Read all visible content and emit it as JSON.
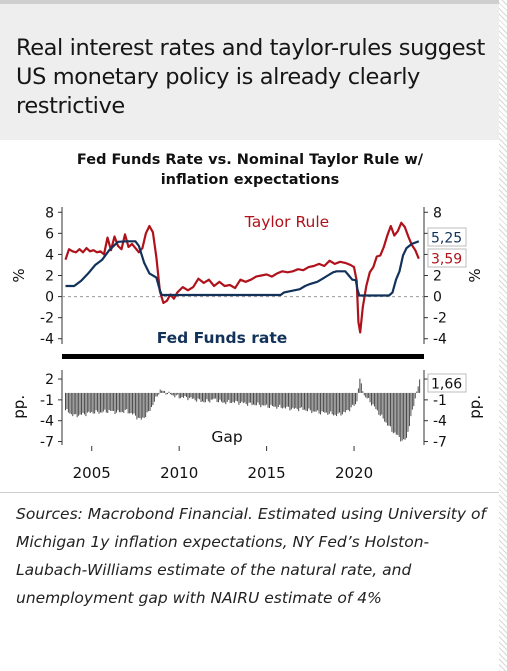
{
  "headline": "Real interest rates and taylor-rules suggest US monetary policy is already clearly restrictive",
  "source": "Sources: Macrobond Financial. Estimated using University of Michigan 1y inflation expectations, NY Fed’s Holston-Laubach-Williams estimate of the natural rate, and unemployment gap with NAIRU estimate of 4%",
  "colors": {
    "taylor_rule": "#b0121b",
    "fed_funds": "#12325a",
    "gap_bars": "#4a4a4a",
    "zero_line": "#9a9a9a"
  },
  "chart_data": [
    {
      "type": "line",
      "title": "Fed Funds Rate vs. Nominal Taylor Rule w/ inflation expectations",
      "ylabel_left": "%",
      "ylabel_right": "%",
      "ylim": [
        -4.5,
        8.5
      ],
      "yticks": [
        8,
        6,
        4,
        2,
        0,
        -2,
        -4
      ],
      "ytick_labels": [
        "8",
        "6",
        "4",
        "2",
        "0",
        "-2",
        "-4"
      ],
      "xlim": [
        2003.3,
        2024.0
      ],
      "xticks": [
        2005,
        2010,
        2015,
        2020
      ],
      "xtick_labels": [
        "2005",
        "2010",
        "2015",
        "2020"
      ],
      "grid": false,
      "series": [
        {
          "name": "Taylor Rule",
          "color": "#b0121b",
          "last_value_label": "3,59",
          "x": [
            2003.5,
            2003.7,
            2003.9,
            2004.1,
            2004.3,
            2004.5,
            2004.7,
            2004.9,
            2005.1,
            2005.3,
            2005.5,
            2005.7,
            2005.9,
            2006.1,
            2006.3,
            2006.5,
            2006.7,
            2006.9,
            2007.1,
            2007.3,
            2007.5,
            2007.7,
            2007.9,
            2008.1,
            2008.3,
            2008.5,
            2008.7,
            2008.9,
            2009.1,
            2009.3,
            2009.5,
            2009.7,
            2009.9,
            2010.2,
            2010.5,
            2010.8,
            2011.1,
            2011.4,
            2011.7,
            2012.0,
            2012.3,
            2012.6,
            2012.9,
            2013.2,
            2013.5,
            2013.8,
            2014.1,
            2014.4,
            2014.7,
            2015.0,
            2015.3,
            2015.6,
            2015.9,
            2016.2,
            2016.5,
            2016.8,
            2017.1,
            2017.4,
            2017.7,
            2018.0,
            2018.3,
            2018.6,
            2018.9,
            2019.2,
            2019.5,
            2019.8,
            2020.0,
            2020.15,
            2020.25,
            2020.35,
            2020.5,
            2020.7,
            2020.9,
            2021.1,
            2021.3,
            2021.5,
            2021.7,
            2021.9,
            2022.1,
            2022.3,
            2022.5,
            2022.7,
            2022.9,
            2023.1,
            2023.3,
            2023.5,
            2023.7
          ],
          "y": [
            3.5,
            4.5,
            4.3,
            4.2,
            4.5,
            4.2,
            4.6,
            4.3,
            4.4,
            4.2,
            4.3,
            4.0,
            5.6,
            4.4,
            5.7,
            4.8,
            4.5,
            5.9,
            4.7,
            5.0,
            4.6,
            4.2,
            4.6,
            6.0,
            6.7,
            6.1,
            3.7,
            0.5,
            -0.6,
            -0.4,
            0.2,
            -0.2,
            0.4,
            0.9,
            0.6,
            0.9,
            1.7,
            1.3,
            1.6,
            1.0,
            1.4,
            1.0,
            1.1,
            0.8,
            1.6,
            1.4,
            1.6,
            1.9,
            2.0,
            2.1,
            1.9,
            2.2,
            2.4,
            2.3,
            2.4,
            2.6,
            2.5,
            2.8,
            2.9,
            3.1,
            2.9,
            3.4,
            3.1,
            3.3,
            3.2,
            3.0,
            2.8,
            1.5,
            -2.4,
            -3.4,
            -1.0,
            1.0,
            2.3,
            2.8,
            3.8,
            3.9,
            4.7,
            5.8,
            6.7,
            5.8,
            6.2,
            7.0,
            6.6,
            5.7,
            4.9,
            4.4,
            3.59
          ]
        },
        {
          "name": "Fed Funds rate",
          "color": "#12325a",
          "last_value_label": "5,25",
          "x": [
            2003.5,
            2004.0,
            2004.4,
            2004.8,
            2005.2,
            2005.6,
            2006.0,
            2006.5,
            2007.0,
            2007.5,
            2007.7,
            2008.0,
            2008.3,
            2008.7,
            2008.9,
            2009.0,
            2012.0,
            2015.8,
            2016.0,
            2016.9,
            2017.2,
            2017.5,
            2017.9,
            2018.2,
            2018.5,
            2018.8,
            2019.0,
            2019.5,
            2019.7,
            2019.9,
            2020.1,
            2020.2,
            2020.3,
            2022.0,
            2022.2,
            2022.4,
            2022.6,
            2022.8,
            2023.0,
            2023.3,
            2023.7
          ],
          "y": [
            1.0,
            1.0,
            1.5,
            2.2,
            3.0,
            3.5,
            4.4,
            5.2,
            5.25,
            5.25,
            4.8,
            3.2,
            2.2,
            1.8,
            0.6,
            0.15,
            0.15,
            0.15,
            0.4,
            0.7,
            1.0,
            1.2,
            1.4,
            1.7,
            2.0,
            2.3,
            2.4,
            2.4,
            2.0,
            1.6,
            1.55,
            0.65,
            0.1,
            0.1,
            0.4,
            1.6,
            2.4,
            3.9,
            4.6,
            5.0,
            5.25
          ]
        }
      ],
      "annotations": [
        "Taylor Rule",
        "Fed Funds rate"
      ]
    },
    {
      "type": "bar",
      "title": "Gap",
      "ylabel_left": "pp.",
      "ylabel_right": "pp.",
      "ylim": [
        -7.5,
        3.3
      ],
      "yticks": [
        2,
        -1,
        -4,
        -7
      ],
      "ytick_labels": [
        "2",
        "-1",
        "-4",
        "-7"
      ],
      "xlim": [
        2003.3,
        2024.0
      ],
      "grid": false,
      "last_value_label": "1,66",
      "x_breakpoints": [
        2003.5,
        2004.0,
        2004.5,
        2005.0,
        2005.5,
        2006.0,
        2006.5,
        2007.0,
        2007.5,
        2007.8,
        2008.2,
        2008.6,
        2008.9,
        2009.2,
        2009.6,
        2010.0,
        2010.5,
        2011.0,
        2011.5,
        2012.0,
        2012.5,
        2013.0,
        2013.5,
        2014.0,
        2014.5,
        2015.0,
        2015.5,
        2016.0,
        2016.5,
        2017.0,
        2017.5,
        2018.0,
        2018.5,
        2019.0,
        2019.5,
        2019.9,
        2020.15,
        2020.3,
        2020.45,
        2020.6,
        2020.8,
        2021.0,
        2021.3,
        2021.6,
        2021.9,
        2022.2,
        2022.5,
        2022.8,
        2023.0,
        2023.3,
        2023.6,
        2023.75
      ],
      "values_at_breakpoints": [
        -2.5,
        -3.3,
        -3.1,
        -2.8,
        -2.8,
        -2.6,
        -2.8,
        -2.6,
        -3.3,
        -3.9,
        -3.0,
        -1.2,
        0.4,
        0.1,
        -0.3,
        -0.6,
        -0.7,
        -1.0,
        -1.3,
        -0.9,
        -1.4,
        -1.3,
        -1.4,
        -1.6,
        -1.7,
        -1.9,
        -2.0,
        -2.1,
        -2.3,
        -2.3,
        -2.6,
        -2.8,
        -2.9,
        -3.2,
        -2.8,
        -2.0,
        -1.5,
        2.0,
        1.0,
        -0.5,
        -0.9,
        -1.5,
        -2.5,
        -3.5,
        -4.5,
        -5.5,
        -6.2,
        -7.0,
        -6.5,
        -3.0,
        0.4,
        1.66
      ]
    }
  ]
}
